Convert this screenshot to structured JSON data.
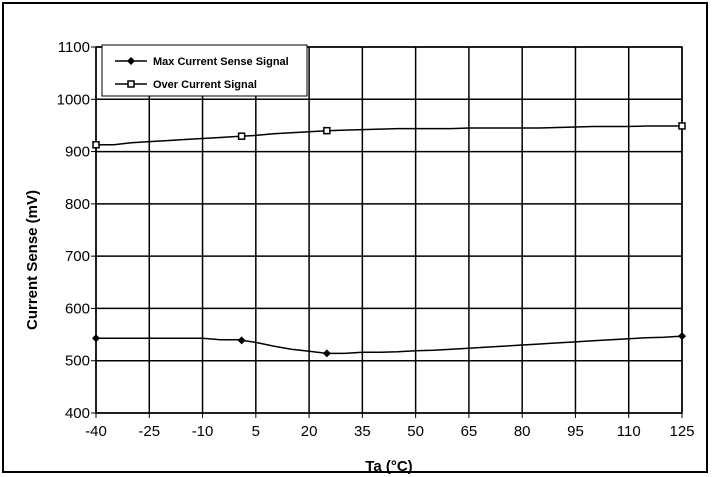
{
  "chart_data": {
    "type": "line",
    "xlabel": "Ta (°C)",
    "ylabel": "Current Sense (mV)",
    "xlim": [
      -40,
      125
    ],
    "ylim": [
      400,
      1100
    ],
    "xticks": [
      -40,
      -25,
      -10,
      5,
      20,
      35,
      50,
      65,
      80,
      95,
      110,
      125
    ],
    "yticks": [
      400,
      500,
      600,
      700,
      800,
      900,
      1000,
      1100
    ],
    "grid": true,
    "legend_position": "top-left",
    "series": [
      {
        "name": "Max Current Sense Signal",
        "marker": "diamond",
        "color": "#000000",
        "x": [
          -40,
          -35,
          -30,
          -25,
          -20,
          -15,
          -10,
          -5,
          0,
          5,
          10,
          15,
          20,
          25,
          30,
          35,
          40,
          45,
          50,
          55,
          60,
          65,
          70,
          75,
          80,
          85,
          90,
          95,
          100,
          105,
          110,
          115,
          120,
          125
        ],
        "y": [
          543,
          543,
          543,
          543,
          543,
          543,
          543,
          540,
          540,
          535,
          528,
          522,
          518,
          514,
          514,
          516,
          516,
          517,
          519,
          520,
          522,
          524,
          526,
          528,
          530,
          532,
          534,
          536,
          538,
          540,
          542,
          544,
          545,
          547
        ],
        "markers_at": [
          -40,
          1,
          25,
          125
        ]
      },
      {
        "name": "Over Current Signal",
        "marker": "square",
        "color": "#000000",
        "x": [
          -40,
          -35,
          -30,
          -25,
          -20,
          -15,
          -10,
          -5,
          0,
          5,
          10,
          15,
          20,
          25,
          30,
          35,
          40,
          45,
          50,
          55,
          60,
          65,
          70,
          75,
          80,
          85,
          90,
          95,
          100,
          105,
          110,
          115,
          120,
          125
        ],
        "y": [
          913,
          913,
          917,
          919,
          921,
          923,
          925,
          927,
          929,
          931,
          934,
          936,
          938,
          940,
          941,
          942,
          943,
          944,
          944,
          944,
          944,
          945,
          945,
          945,
          945,
          945,
          946,
          947,
          948,
          948,
          948,
          949,
          949,
          949
        ],
        "markers_at": [
          -40,
          1,
          25,
          125
        ]
      }
    ]
  }
}
